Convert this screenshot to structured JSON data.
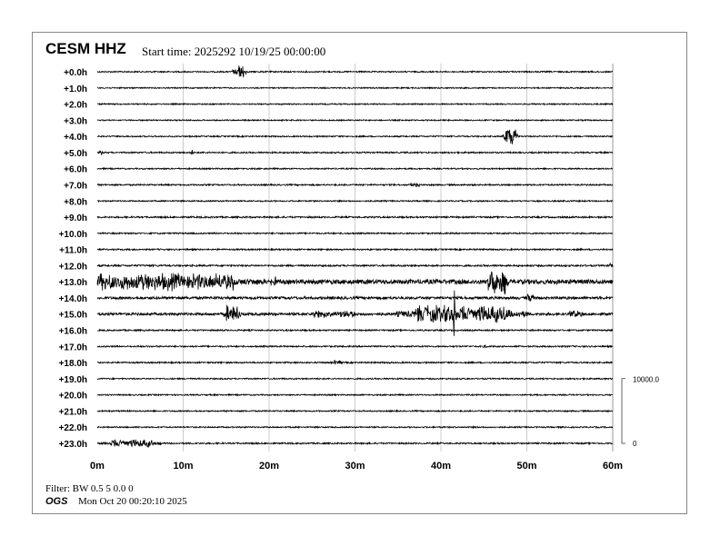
{
  "header": {
    "station": "CESM HHZ",
    "start_time": "Start time: 2025292 10/19/25 00:00:00"
  },
  "footer": {
    "filter": "Filter: BW 0.5 5 0.0 0",
    "agency": "OGS",
    "generated": "Mon Oct 20 00:20:10 2025"
  },
  "chart_data": {
    "type": "line",
    "subtype": "helicorder",
    "row_labels": [
      "+0.0h",
      "+1.0h",
      "+2.0h",
      "+3.0h",
      "+4.0h",
      "+5.0h",
      "+6.0h",
      "+7.0h",
      "+8.0h",
      "+9.0h",
      "+10.0h",
      "+11.0h",
      "+12.0h",
      "+13.0h",
      "+14.0h",
      "+15.0h",
      "+16.0h",
      "+17.0h",
      "+18.0h",
      "+19.0h",
      "+20.0h",
      "+21.0h",
      "+22.0h",
      "+23.0h"
    ],
    "x_ticks": [
      "0m",
      "10m",
      "20m",
      "30m",
      "40m",
      "50m",
      "60m"
    ],
    "x_range": [
      0,
      60
    ],
    "grid": "vertical every 10m",
    "scale_bar": {
      "top_label": "10000.0",
      "bottom_label": "0",
      "counts": 10000
    },
    "noise_counts": [
      100,
      90,
      90,
      90,
      100,
      110,
      100,
      110,
      100,
      120,
      110,
      110,
      130,
      350,
      200,
      200,
      110,
      110,
      110,
      100,
      100,
      100,
      100,
      110
    ],
    "events": [
      {
        "hour": 0,
        "minute": 16,
        "duration": 1.2,
        "amplitude": 1200
      },
      {
        "hour": 4,
        "minute": 47.5,
        "duration": 1.2,
        "amplitude": 1800
      },
      {
        "hour": 5,
        "minute": 0.2,
        "duration": 0.4,
        "amplitude": 400
      },
      {
        "hour": 5,
        "minute": 10.8,
        "duration": 0.3,
        "amplitude": 500
      },
      {
        "hour": 7,
        "minute": 36.5,
        "duration": 1,
        "amplitude": 350
      },
      {
        "hour": 12,
        "minute": 59.5,
        "duration": 1,
        "amplitude": 450
      },
      {
        "hour": 13,
        "minute": 0,
        "duration": 16,
        "amplitude": 1500
      },
      {
        "hour": 13,
        "minute": 20,
        "duration": 1,
        "amplitude": 900
      },
      {
        "hour": 13,
        "minute": 45.5,
        "duration": 2,
        "amplitude": 2200
      },
      {
        "hour": 14,
        "minute": 50,
        "duration": 1,
        "amplitude": 700
      },
      {
        "hour": 15,
        "minute": 15,
        "duration": 1.5,
        "amplitude": 1600
      },
      {
        "hour": 15,
        "minute": 25,
        "duration": 5,
        "amplitude": 700
      },
      {
        "hour": 15,
        "minute": 37,
        "duration": 11,
        "amplitude": 1500
      },
      {
        "hour": 15,
        "minute": 41.5,
        "duration": 0.1,
        "amplitude": 5000
      },
      {
        "hour": 15,
        "minute": 55,
        "duration": 1.5,
        "amplitude": 700
      },
      {
        "hour": 17,
        "minute": 45,
        "duration": 0.3,
        "amplitude": 400
      },
      {
        "hour": 18,
        "minute": 27.5,
        "duration": 1,
        "amplitude": 400
      },
      {
        "hour": 23,
        "minute": 1.5,
        "duration": 5,
        "amplitude": 700
      }
    ],
    "trace_color": "#000000",
    "grid_color": "#cccccc"
  }
}
